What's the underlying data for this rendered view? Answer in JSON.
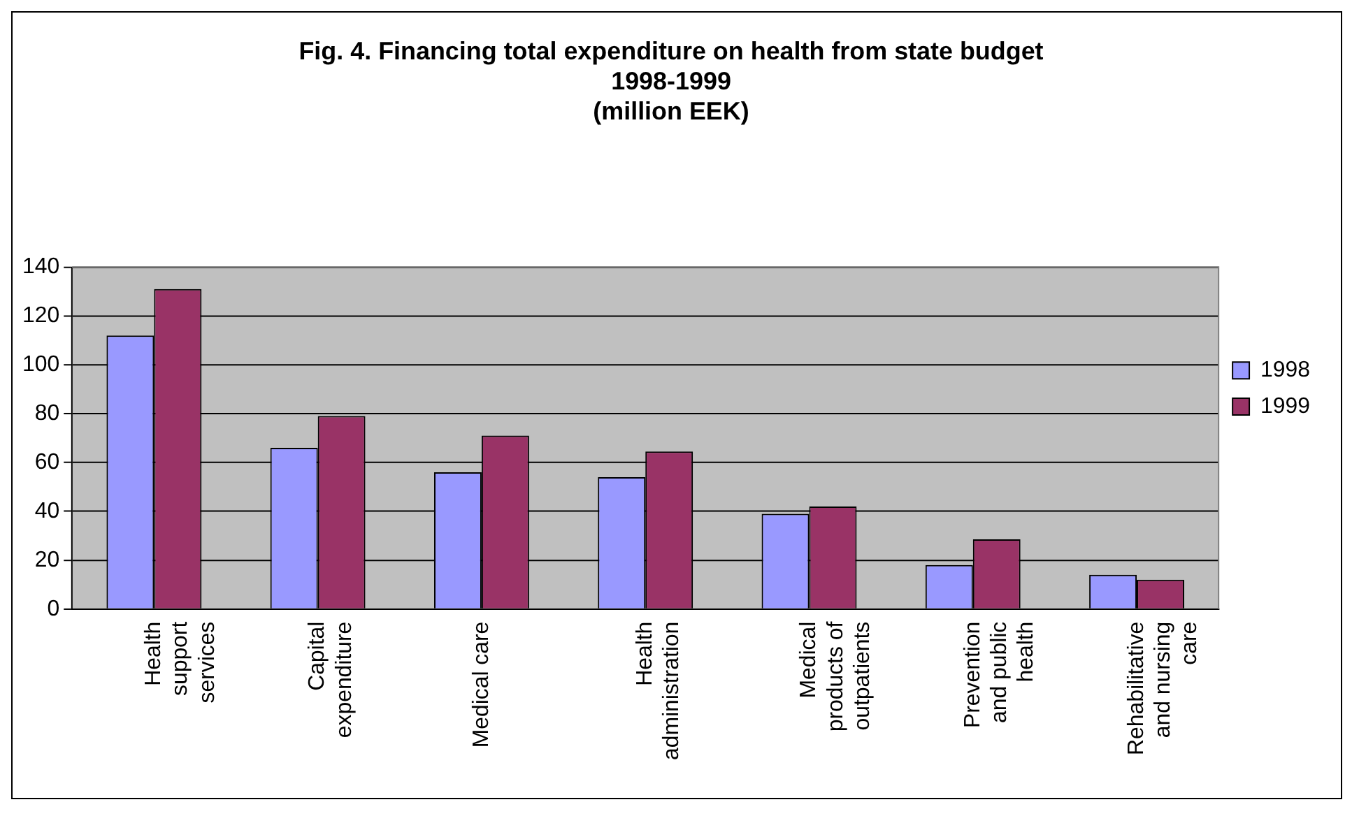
{
  "chart_data": {
    "type": "bar",
    "title": "Fig. 4. Financing total expenditure on health from state budget\n1998-1999\n(million EEK)",
    "categories": [
      "Health support services",
      "Capital expenditure",
      "Medical care",
      "Health administration",
      "Medical products of outpatients",
      "Prevention and public health",
      "Rehabilitative and nursing care"
    ],
    "series": [
      {
        "name": "1998",
        "color": "#9999ff",
        "values": [
          112,
          66,
          56,
          54,
          39,
          18,
          14
        ]
      },
      {
        "name": "1999",
        "color": "#993366",
        "values": [
          131,
          79,
          71,
          64.5,
          42,
          28.5,
          12
        ]
      }
    ],
    "ylim": [
      0,
      140
    ],
    "yticks": [
      0,
      20,
      40,
      60,
      80,
      100,
      120,
      140
    ],
    "grid": "y",
    "legend": "right"
  }
}
